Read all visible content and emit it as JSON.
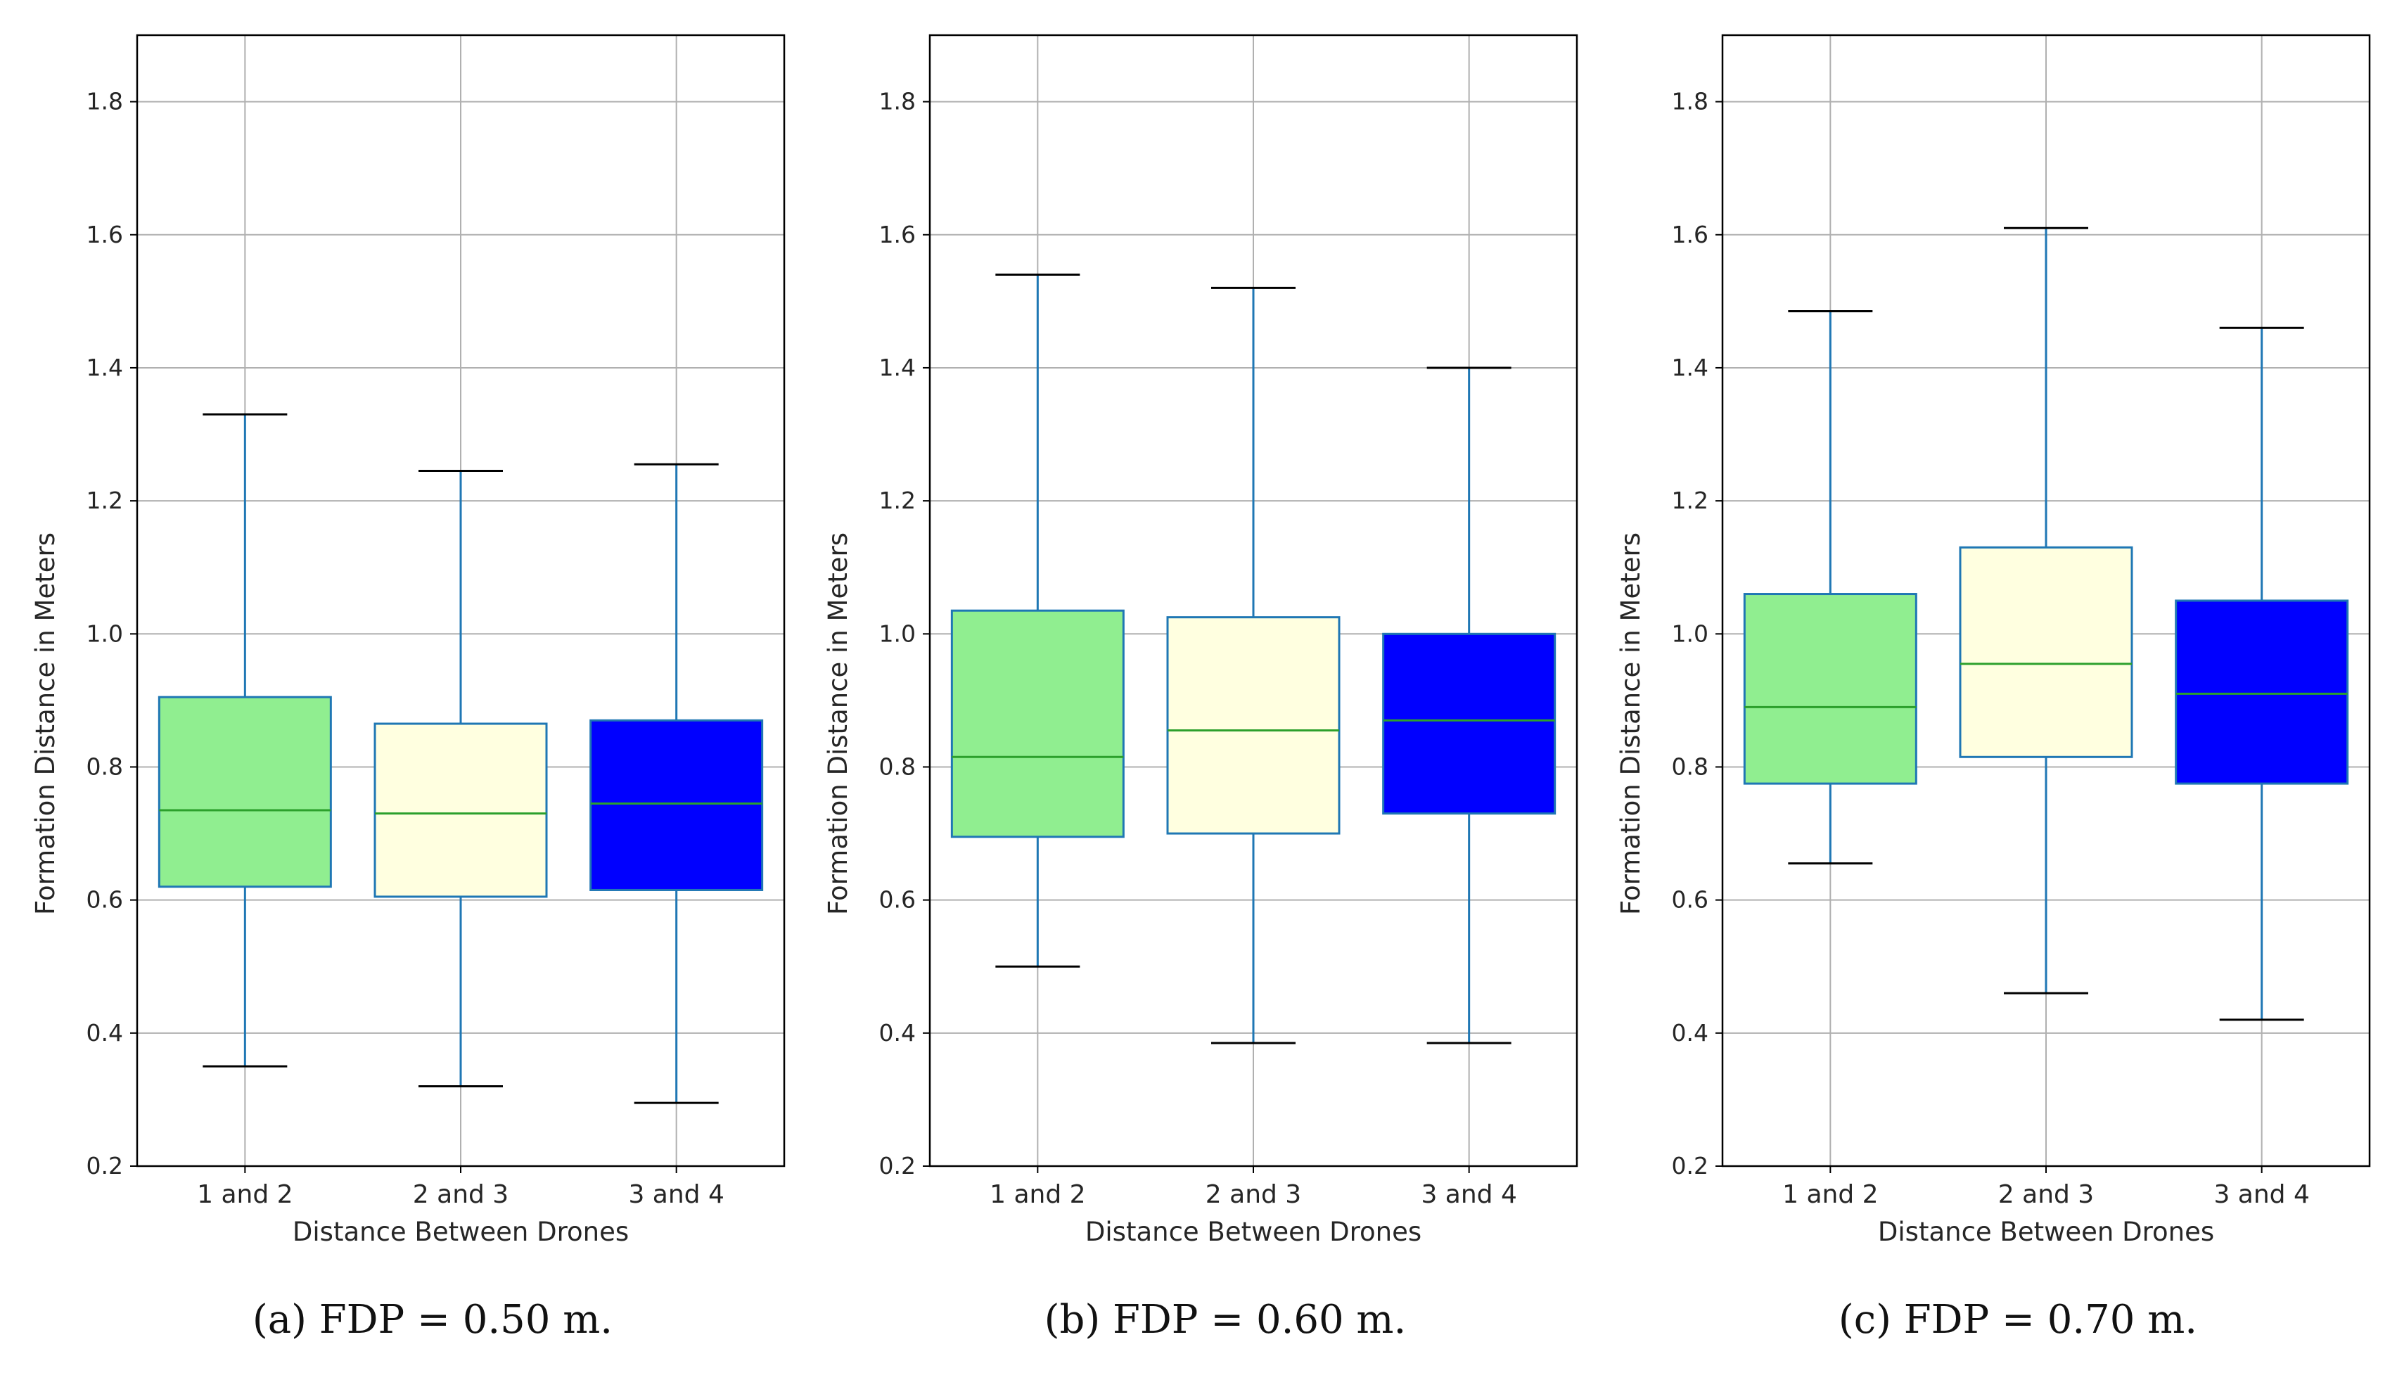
{
  "chart_data": [
    {
      "type": "box",
      "caption": "(a)  FDP = 0.50 m.",
      "xlabel": "Distance Between Drones",
      "ylabel": "Formation Distance in Meters",
      "ylim": [
        0.2,
        1.9
      ],
      "yticks": [
        0.2,
        0.4,
        0.6,
        0.8,
        1.0,
        1.2,
        1.4,
        1.6,
        1.8
      ],
      "ytick_labels": [
        "0.2",
        "0.4",
        "0.6",
        "0.8",
        "1.0",
        "1.2",
        "1.4",
        "1.6",
        "1.8"
      ],
      "grid": true,
      "categories": [
        "1 and 2",
        "2 and 3",
        "3 and 4"
      ],
      "colors": [
        "#90EE90",
        "#FFFFE0",
        "#0000FF"
      ],
      "boxes": [
        {
          "whisker_low": 0.35,
          "q1": 0.62,
          "median": 0.735,
          "q3": 0.905,
          "whisker_high": 1.33
        },
        {
          "whisker_low": 0.32,
          "q1": 0.605,
          "median": 0.73,
          "q3": 0.865,
          "whisker_high": 1.245
        },
        {
          "whisker_low": 0.295,
          "q1": 0.615,
          "median": 0.745,
          "q3": 0.87,
          "whisker_high": 1.255
        }
      ]
    },
    {
      "type": "box",
      "caption": "(b)  FDP = 0.60 m.",
      "xlabel": "Distance Between Drones",
      "ylabel": "Formation Distance in Meters",
      "ylim": [
        0.2,
        1.9
      ],
      "yticks": [
        0.2,
        0.4,
        0.6,
        0.8,
        1.0,
        1.2,
        1.4,
        1.6,
        1.8
      ],
      "ytick_labels": [
        "0.2",
        "0.4",
        "0.6",
        "0.8",
        "1.0",
        "1.2",
        "1.4",
        "1.6",
        "1.8"
      ],
      "grid": true,
      "categories": [
        "1 and 2",
        "2 and 3",
        "3 and 4"
      ],
      "colors": [
        "#90EE90",
        "#FFFFE0",
        "#0000FF"
      ],
      "boxes": [
        {
          "whisker_low": 0.5,
          "q1": 0.695,
          "median": 0.815,
          "q3": 1.035,
          "whisker_high": 1.54
        },
        {
          "whisker_low": 0.385,
          "q1": 0.7,
          "median": 0.855,
          "q3": 1.025,
          "whisker_high": 1.52
        },
        {
          "whisker_low": 0.385,
          "q1": 0.73,
          "median": 0.87,
          "q3": 1.0,
          "whisker_high": 1.4
        }
      ]
    },
    {
      "type": "box",
      "caption": "(c)  FDP = 0.70 m.",
      "xlabel": "Distance Between Drones",
      "ylabel": "Formation Distance in Meters",
      "ylim": [
        0.2,
        1.9
      ],
      "yticks": [
        0.2,
        0.4,
        0.6,
        0.8,
        1.0,
        1.2,
        1.4,
        1.6,
        1.8
      ],
      "ytick_labels": [
        "0.2",
        "0.4",
        "0.6",
        "0.8",
        "1.0",
        "1.2",
        "1.4",
        "1.6",
        "1.8"
      ],
      "grid": true,
      "categories": [
        "1 and 2",
        "2 and 3",
        "3 and 4"
      ],
      "colors": [
        "#90EE90",
        "#FFFFE0",
        "#0000FF"
      ],
      "boxes": [
        {
          "whisker_low": 0.655,
          "q1": 0.775,
          "median": 0.89,
          "q3": 1.06,
          "whisker_high": 1.485
        },
        {
          "whisker_low": 0.46,
          "q1": 0.815,
          "median": 0.955,
          "q3": 1.13,
          "whisker_high": 1.61
        },
        {
          "whisker_low": 0.42,
          "q1": 0.775,
          "median": 0.91,
          "q3": 1.05,
          "whisker_high": 1.46
        }
      ]
    }
  ],
  "style": {
    "box_edge_color": "#1f77b4",
    "median_color": "#2ca02c",
    "cap_color": "#000000",
    "grid_color": "#b0b0b0",
    "axes_color": "#000000"
  }
}
